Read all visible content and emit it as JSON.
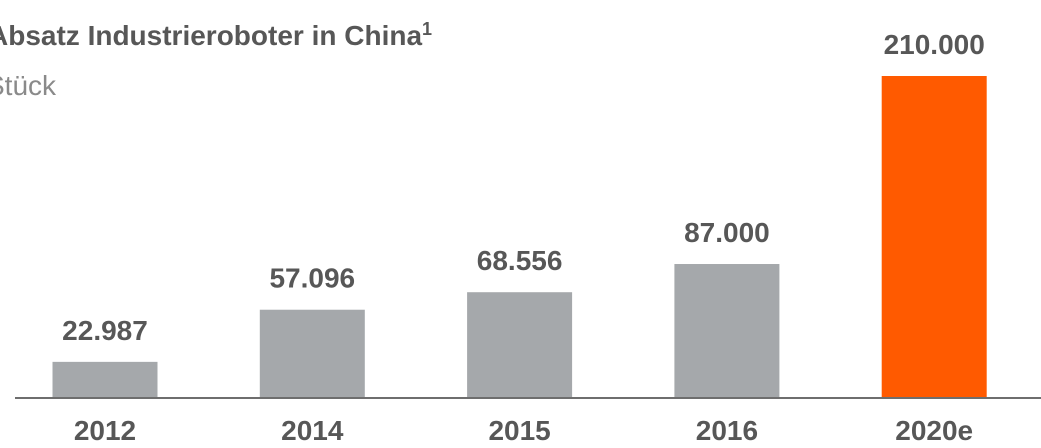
{
  "chart_data": {
    "type": "bar",
    "title": "Absatz Industrieroboter in China",
    "title_footnote": "1",
    "subtitle": "Stück",
    "categories": [
      "2012",
      "2014",
      "2015",
      "2016",
      "2020e"
    ],
    "values": [
      22987,
      57096,
      68556,
      87000,
      210000
    ],
    "value_labels": [
      "22.987",
      "57.096",
      "68.556",
      "87.000",
      "210.000"
    ],
    "colors": [
      "#a5a8ab",
      "#a5a8ab",
      "#a5a8ab",
      "#a5a8ab",
      "#ff5a00"
    ]
  }
}
